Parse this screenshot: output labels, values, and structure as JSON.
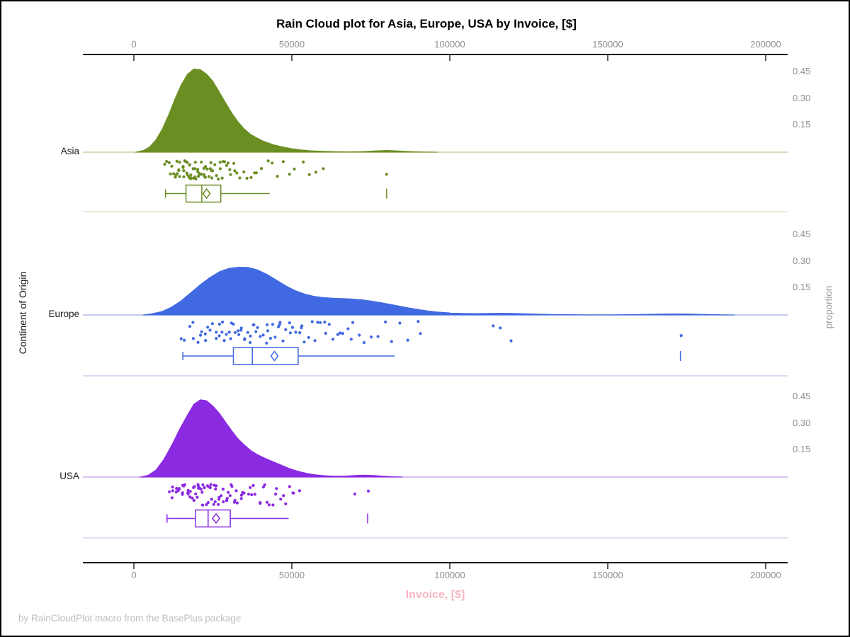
{
  "title": "Rain Cloud plot for Asia, Europe, USA by Invoice, [$]",
  "footer": "by RainCloudPlot macro from the BasePlus package",
  "colors": {
    "asia": "#6b8e23",
    "europe": "#4169e1",
    "usa": "#8a2be2",
    "axis": "#1a1a1a",
    "tick_label": "#8e8e8e",
    "x_label": "#f7b6c1",
    "footer_text": "#bdbdbd"
  },
  "axes": {
    "x": {
      "label": "Invoice, [$]",
      "tick_labels": [
        "0",
        "50000",
        "100000",
        "150000",
        "200000"
      ]
    },
    "y": {
      "label": "Continent of Origin",
      "categories": [
        "Asia",
        "Europe",
        "USA"
      ]
    },
    "proportion": {
      "label": "proportion",
      "tick_labels": [
        "0.45",
        "0.30",
        "0.15"
      ]
    }
  },
  "chart_data": {
    "type": "raincloud",
    "title": "Rain Cloud plot for Asia, Europe, USA by Invoice, [$]",
    "xlabel": "Invoice, [$]",
    "ylabel_left": "Continent of Origin",
    "ylabel_right": "proportion",
    "x_axis": {
      "ticks": [
        0,
        50000,
        100000,
        150000,
        200000
      ],
      "range": [
        -16000,
        207000
      ]
    },
    "proportion_ticks": [
      0.15,
      0.3,
      0.45
    ],
    "series": [
      {
        "name": "Asia",
        "color": "#6b8e23",
        "baseline_color": "#c6d2a2",
        "separator_color": "#dde6c7",
        "box": {
          "whisker_low": 10000,
          "q1": 16500,
          "median": 21500,
          "mean": 23000,
          "q3": 27500,
          "whisker_high": 43000,
          "outliers": [
            80000
          ]
        },
        "density": [
          [
            500,
            0
          ],
          [
            3000,
            0.01
          ],
          [
            5000,
            0.03
          ],
          [
            7000,
            0.07
          ],
          [
            9000,
            0.13
          ],
          [
            11000,
            0.21
          ],
          [
            13000,
            0.3
          ],
          [
            15000,
            0.38
          ],
          [
            17000,
            0.44
          ],
          [
            19000,
            0.468
          ],
          [
            21000,
            0.465
          ],
          [
            23000,
            0.44
          ],
          [
            25000,
            0.4
          ],
          [
            27000,
            0.34
          ],
          [
            29000,
            0.28
          ],
          [
            31000,
            0.22
          ],
          [
            33000,
            0.17
          ],
          [
            35000,
            0.13
          ],
          [
            37000,
            0.1
          ],
          [
            39000,
            0.08
          ],
          [
            41000,
            0.062
          ],
          [
            44000,
            0.043
          ],
          [
            47000,
            0.03
          ],
          [
            50000,
            0.02
          ],
          [
            53000,
            0.013
          ],
          [
            56000,
            0.008
          ],
          [
            60000,
            0.005
          ],
          [
            64000,
            0.003
          ],
          [
            68000,
            0.002
          ],
          [
            72000,
            0.003
          ],
          [
            76000,
            0.007
          ],
          [
            80000,
            0.01
          ],
          [
            84000,
            0.007
          ],
          [
            88000,
            0.003
          ],
          [
            92000,
            0.001
          ],
          [
            96000,
            0
          ]
        ],
        "points": [
          9800,
          10600,
          11200,
          11800,
          12300,
          12700,
          13100,
          13400,
          13700,
          14000,
          14300,
          14600,
          14900,
          15200,
          15500,
          15800,
          16000,
          16300,
          16500,
          16800,
          17000,
          17300,
          17500,
          17800,
          18000,
          18200,
          18500,
          18700,
          19000,
          19200,
          19500,
          19700,
          20000,
          20200,
          20500,
          20800,
          21000,
          21300,
          21600,
          21900,
          22200,
          22500,
          22800,
          23100,
          23400,
          23700,
          24000,
          24400,
          24800,
          25200,
          25600,
          26000,
          26500,
          27000,
          27500,
          28000,
          28600,
          29200,
          29800,
          30500,
          31200,
          32000,
          32800,
          33700,
          34600,
          35600,
          36700,
          37900,
          39200,
          40600,
          42100,
          43700,
          45400,
          47200,
          49100,
          51100,
          53200,
          55400,
          57700,
          60000,
          13900,
          16600,
          19400,
          22100,
          24900,
          27700,
          30900,
          80000
        ]
      },
      {
        "name": "Europe",
        "color": "#4169e1",
        "baseline_color": "#aab9e8",
        "separator_color": "#c9d2f1",
        "box": {
          "whisker_low": 15500,
          "q1": 31500,
          "median": 37500,
          "mean": 44500,
          "q3": 52000,
          "whisker_high": 82500,
          "outliers": [
            173000
          ]
        },
        "density": [
          [
            3000,
            0
          ],
          [
            6000,
            0.008
          ],
          [
            9000,
            0.02
          ],
          [
            12000,
            0.045
          ],
          [
            15000,
            0.08
          ],
          [
            18000,
            0.125
          ],
          [
            21000,
            0.17
          ],
          [
            24000,
            0.21
          ],
          [
            27000,
            0.243
          ],
          [
            30000,
            0.262
          ],
          [
            33000,
            0.269
          ],
          [
            36000,
            0.268
          ],
          [
            39000,
            0.255
          ],
          [
            42000,
            0.23
          ],
          [
            45000,
            0.198
          ],
          [
            48000,
            0.165
          ],
          [
            51000,
            0.138
          ],
          [
            54000,
            0.118
          ],
          [
            57000,
            0.105
          ],
          [
            60000,
            0.098
          ],
          [
            63000,
            0.095
          ],
          [
            66000,
            0.093
          ],
          [
            69000,
            0.09
          ],
          [
            72000,
            0.086
          ],
          [
            75000,
            0.079
          ],
          [
            78000,
            0.07
          ],
          [
            81000,
            0.06
          ],
          [
            84000,
            0.05
          ],
          [
            87000,
            0.04
          ],
          [
            90000,
            0.031
          ],
          [
            93000,
            0.023
          ],
          [
            96000,
            0.017
          ],
          [
            100000,
            0.012
          ],
          [
            104000,
            0.009
          ],
          [
            108000,
            0.008
          ],
          [
            112000,
            0.009
          ],
          [
            116000,
            0.01
          ],
          [
            120000,
            0.009
          ],
          [
            124000,
            0.007
          ],
          [
            128000,
            0.005
          ],
          [
            132000,
            0.003
          ],
          [
            137000,
            0.002
          ],
          [
            143000,
            0.001
          ],
          [
            150000,
            0.001
          ],
          [
            157000,
            0.002
          ],
          [
            163000,
            0.004
          ],
          [
            169000,
            0.006
          ],
          [
            174000,
            0.006
          ],
          [
            179000,
            0.004
          ],
          [
            184000,
            0.002
          ],
          [
            190000,
            0
          ]
        ],
        "points": [
          15300,
          16400,
          17400,
          18300,
          19200,
          20000,
          20800,
          21600,
          22300,
          23000,
          23700,
          24400,
          25100,
          25800,
          26400,
          27100,
          27700,
          28400,
          29000,
          29600,
          30300,
          30900,
          31500,
          32200,
          32800,
          33400,
          34100,
          34700,
          35400,
          36000,
          36700,
          37300,
          38000,
          38700,
          39400,
          40100,
          40800,
          41600,
          42300,
          43100,
          43900,
          44700,
          45500,
          46400,
          47300,
          48200,
          49100,
          50100,
          51100,
          52100,
          53200,
          54300,
          55400,
          56600,
          57800,
          59100,
          60400,
          61800,
          63200,
          64700,
          66300,
          67900,
          69600,
          71400,
          73300,
          75300,
          77400,
          79600,
          81900,
          84300,
          86900,
          89600,
          26800,
          30600,
          34400,
          38200,
          42000,
          45800,
          49600,
          53400,
          57200,
          61000,
          64800,
          68600,
          90500,
          113500,
          116000,
          119500,
          173000
        ]
      },
      {
        "name": "USA",
        "color": "#8a2be2",
        "baseline_color": "#cfaae9",
        "separator_color": "#e2d0f4",
        "box": {
          "whisker_low": 10500,
          "q1": 19500,
          "median": 23500,
          "mean": 26000,
          "q3": 30500,
          "whisker_high": 49000,
          "outliers": [
            74000
          ]
        },
        "density": [
          [
            2000,
            0
          ],
          [
            4500,
            0.01
          ],
          [
            7000,
            0.04
          ],
          [
            9500,
            0.1
          ],
          [
            12000,
            0.18
          ],
          [
            14500,
            0.27
          ],
          [
            17000,
            0.35
          ],
          [
            19000,
            0.41
          ],
          [
            21000,
            0.435
          ],
          [
            23000,
            0.43
          ],
          [
            25000,
            0.4
          ],
          [
            27000,
            0.36
          ],
          [
            29000,
            0.31
          ],
          [
            31000,
            0.26
          ],
          [
            33000,
            0.215
          ],
          [
            35000,
            0.18
          ],
          [
            37000,
            0.15
          ],
          [
            39000,
            0.128
          ],
          [
            41000,
            0.11
          ],
          [
            43000,
            0.095
          ],
          [
            45000,
            0.08
          ],
          [
            47000,
            0.065
          ],
          [
            49000,
            0.05
          ],
          [
            51000,
            0.038
          ],
          [
            53000,
            0.028
          ],
          [
            55000,
            0.02
          ],
          [
            57000,
            0.014
          ],
          [
            59000,
            0.01
          ],
          [
            61000,
            0.007
          ],
          [
            64000,
            0.005
          ],
          [
            67000,
            0.006
          ],
          [
            70000,
            0.009
          ],
          [
            73000,
            0.011
          ],
          [
            76000,
            0.009
          ],
          [
            79000,
            0.005
          ],
          [
            82000,
            0.002
          ],
          [
            85000,
            0
          ]
        ],
        "points": [
          10900,
          11800,
          12600,
          13300,
          13900,
          14500,
          15000,
          15500,
          16000,
          16500,
          17000,
          17400,
          17900,
          18300,
          18700,
          19100,
          19500,
          19900,
          20300,
          20700,
          21100,
          21500,
          21900,
          22300,
          22700,
          23100,
          23500,
          23900,
          24300,
          24700,
          25100,
          25500,
          26000,
          26400,
          26900,
          27400,
          27900,
          28400,
          28900,
          29400,
          30000,
          30600,
          31200,
          31800,
          32400,
          33100,
          33800,
          34500,
          35300,
          36100,
          36900,
          37800,
          38700,
          39700,
          40700,
          41800,
          42900,
          44100,
          45300,
          46600,
          48000,
          49400,
          50900,
          52400,
          14200,
          16800,
          19300,
          21800,
          24400,
          26900,
          29500,
          32000,
          34700,
          37300,
          40000,
          42600,
          45200,
          47800,
          50400,
          12100,
          13600,
          15200,
          17700,
          20100,
          22600,
          25300,
          28100,
          31000,
          33900,
          70000,
          74500
        ]
      }
    ]
  }
}
